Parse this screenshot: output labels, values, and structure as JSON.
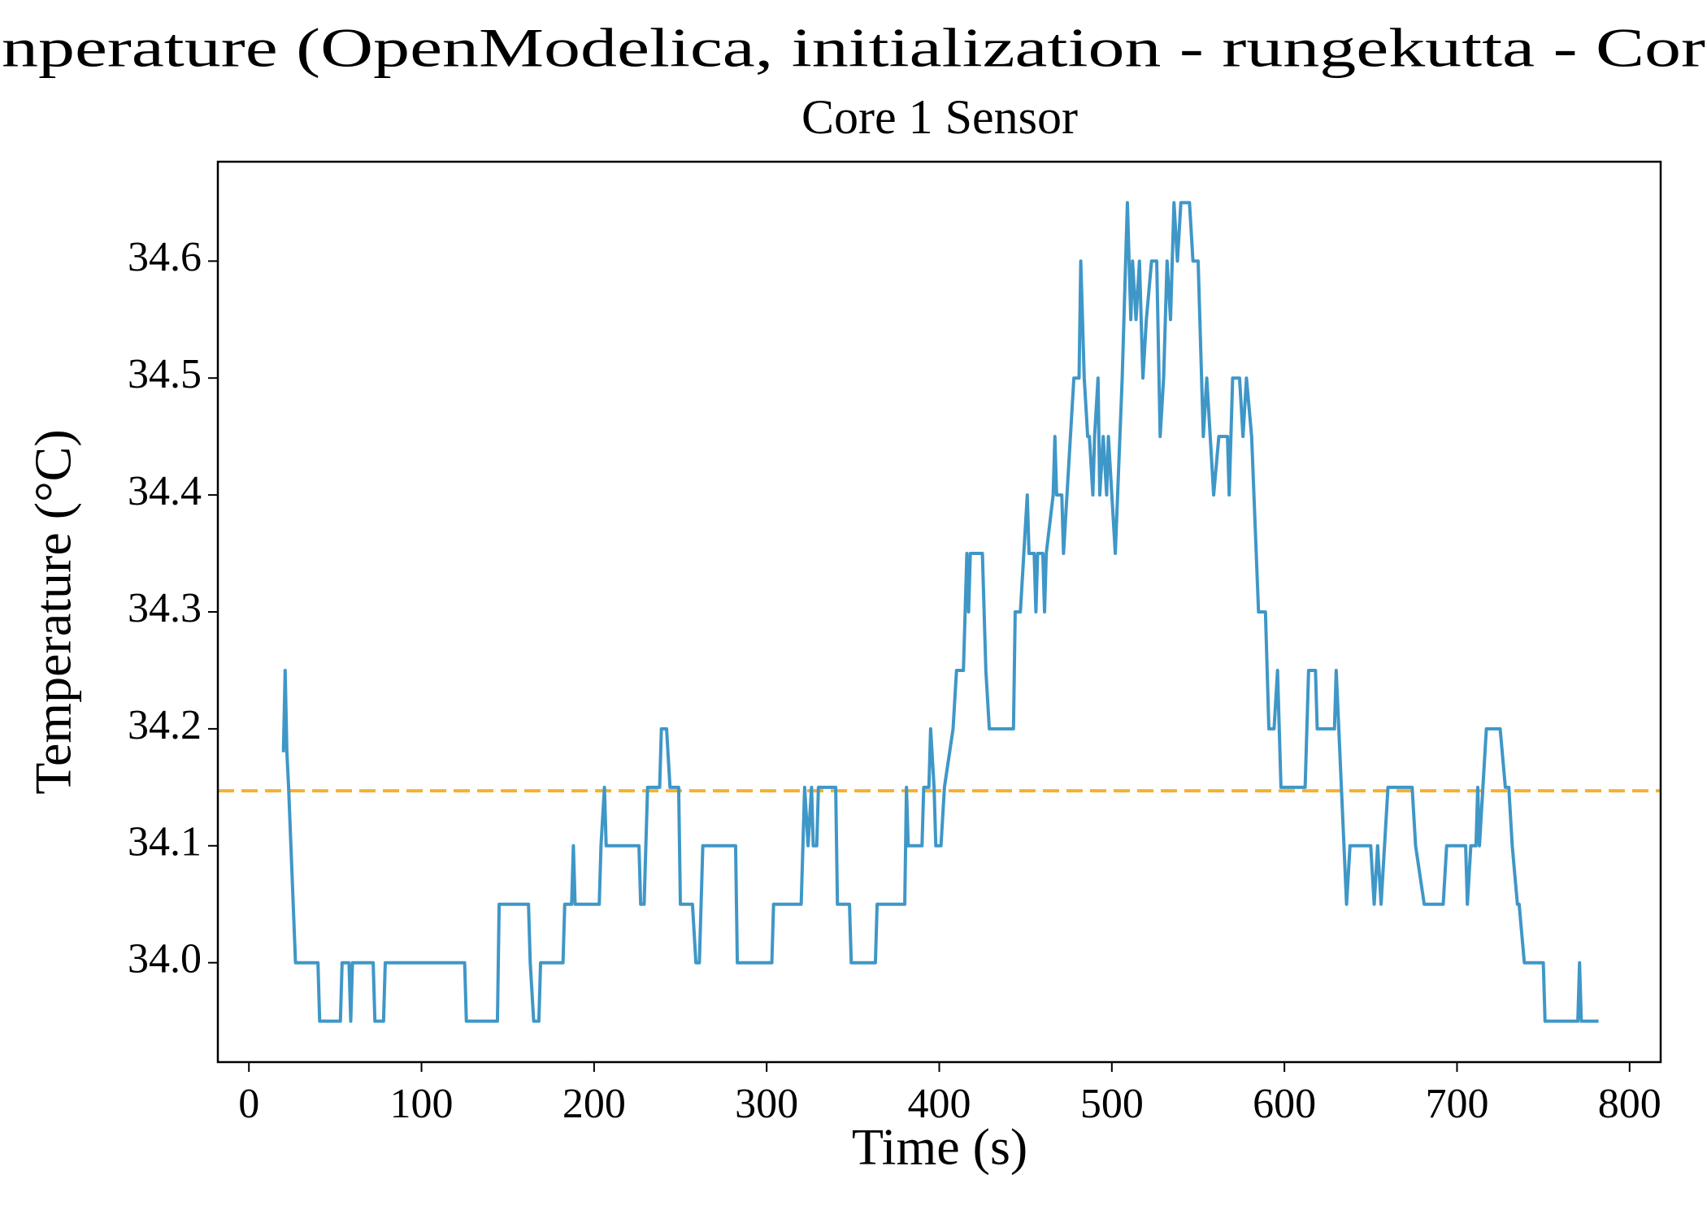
{
  "chart_data": {
    "type": "line",
    "title": "nperature (OpenModelica, initialization - rungekutta - Cor",
    "subtitle": "Core 1 Sensor",
    "x_label": "Time (s)",
    "y_label": "Temperature (°C)",
    "xlim": [
      -18,
      818
    ],
    "ylim": [
      33.915,
      34.685
    ],
    "xticks": [
      0,
      100,
      200,
      300,
      400,
      500,
      600,
      700,
      800
    ],
    "yticks": [
      {
        "value": 34,
        "label": "34.0"
      },
      34.1,
      34.2,
      34.3,
      34.4,
      34.5,
      34.6
    ],
    "grid": false,
    "reference_line": {
      "value": 34.147,
      "color": "#f7b12d",
      "style": "dashed"
    },
    "x": [
      20,
      21,
      22,
      23,
      27,
      40,
      41,
      53,
      54,
      58,
      59,
      60,
      72,
      73,
      78,
      79,
      125,
      126,
      144,
      145,
      162,
      163,
      165,
      168,
      169,
      182,
      183,
      187,
      188,
      189,
      203,
      204,
      206,
      207,
      226,
      227,
      229,
      231,
      238,
      239,
      242,
      244,
      249,
      250,
      257,
      259,
      261,
      263,
      282,
      283,
      303,
      304,
      320,
      322,
      324,
      326,
      327,
      329,
      330,
      340,
      341,
      348,
      349,
      363,
      364,
      380,
      381,
      382,
      390,
      391,
      394,
      395,
      397,
      398,
      401,
      403,
      408,
      410,
      414,
      415,
      416,
      417,
      418,
      425,
      427,
      429,
      443,
      444,
      447,
      449,
      451,
      452,
      455,
      456,
      457,
      460,
      461,
      462,
      466,
      467,
      468,
      471,
      472,
      474,
      478,
      481,
      482,
      484,
      486,
      487,
      489,
      490,
      492,
      493,
      495,
      497,
      498,
      502,
      506,
      509,
      511,
      512,
      514,
      516,
      518,
      520,
      523,
      526,
      528,
      530,
      532,
      534,
      536,
      538,
      540,
      545,
      547,
      550,
      551,
      553,
      555,
      557,
      559,
      562,
      567,
      568,
      570,
      574,
      576,
      578,
      581,
      585,
      589,
      591,
      594,
      596,
      598,
      612,
      614,
      618,
      619,
      629,
      630,
      636,
      638,
      650,
      652,
      654,
      656,
      658,
      660,
      674,
      676,
      681,
      692,
      694,
      705,
      706,
      708,
      711,
      712,
      713,
      715,
      717,
      725,
      728,
      730,
      732,
      735,
      736,
      739,
      750,
      751,
      770,
      771,
      772,
      782
    ],
    "series": [
      {
        "color": "#3f97c7",
        "values": [
          34.18,
          34.25,
          34.18,
          34.15,
          34.0,
          34.0,
          33.95,
          33.95,
          34.0,
          34.0,
          33.95,
          34.0,
          34.0,
          33.95,
          33.95,
          34.0,
          34.0,
          33.95,
          33.95,
          34.05,
          34.05,
          34.0,
          33.95,
          33.95,
          34.0,
          34.0,
          34.05,
          34.05,
          34.1,
          34.05,
          34.05,
          34.1,
          34.15,
          34.1,
          34.1,
          34.05,
          34.05,
          34.15,
          34.15,
          34.2,
          34.2,
          34.15,
          34.15,
          34.05,
          34.05,
          34.0,
          34.0,
          34.1,
          34.1,
          34.0,
          34.0,
          34.05,
          34.05,
          34.15,
          34.1,
          34.15,
          34.1,
          34.1,
          34.15,
          34.15,
          34.05,
          34.05,
          34.0,
          34.0,
          34.05,
          34.05,
          34.15,
          34.1,
          34.1,
          34.15,
          34.15,
          34.2,
          34.15,
          34.1,
          34.1,
          34.15,
          34.2,
          34.25,
          34.25,
          34.3,
          34.35,
          34.3,
          34.35,
          34.35,
          34.25,
          34.2,
          34.2,
          34.3,
          34.3,
          34.35,
          34.4,
          34.35,
          34.35,
          34.3,
          34.35,
          34.35,
          34.3,
          34.35,
          34.4,
          34.45,
          34.4,
          34.4,
          34.35,
          34.4,
          34.5,
          34.5,
          34.6,
          34.5,
          34.45,
          34.45,
          34.4,
          34.45,
          34.5,
          34.4,
          34.45,
          34.4,
          34.45,
          34.35,
          34.5,
          34.65,
          34.55,
          34.6,
          34.55,
          34.6,
          34.5,
          34.55,
          34.6,
          34.6,
          34.45,
          34.5,
          34.6,
          34.55,
          34.65,
          34.6,
          34.65,
          34.65,
          34.6,
          34.6,
          34.55,
          34.45,
          34.5,
          34.45,
          34.4,
          34.45,
          34.45,
          34.4,
          34.5,
          34.5,
          34.45,
          34.5,
          34.45,
          34.3,
          34.3,
          34.2,
          34.2,
          34.25,
          34.15,
          34.15,
          34.25,
          34.25,
          34.2,
          34.2,
          34.25,
          34.05,
          34.1,
          34.1,
          34.05,
          34.1,
          34.05,
          34.1,
          34.15,
          34.15,
          34.1,
          34.05,
          34.05,
          34.1,
          34.1,
          34.05,
          34.1,
          34.1,
          34.15,
          34.1,
          34.15,
          34.2,
          34.2,
          34.15,
          34.15,
          34.1,
          34.05,
          34.05,
          34.0,
          34.0,
          33.95,
          33.95,
          34.0,
          33.95,
          33.95
        ]
      }
    ]
  }
}
